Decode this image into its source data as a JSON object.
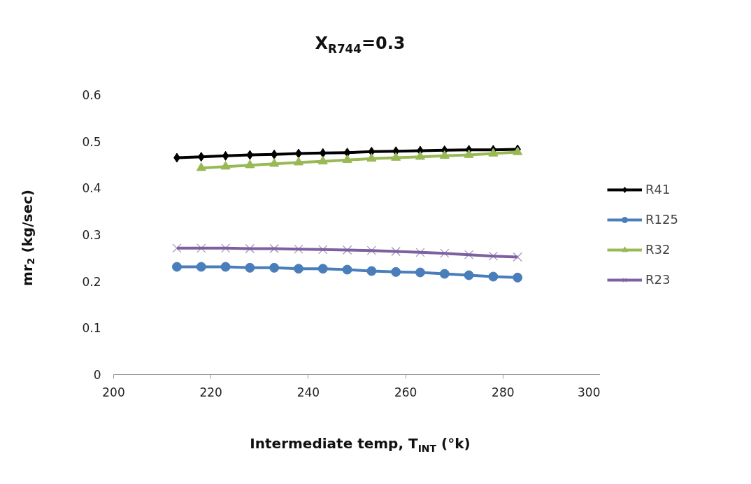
{
  "chart_data": {
    "type": "line",
    "title": "X$_{R744}$=0.3",
    "xlabel": "Intermediate temp, T$_{INT}$ (°k)",
    "ylabel": "mr$_{2}$ (kg/sec)",
    "x": [
      213,
      218,
      223,
      228,
      233,
      238,
      243,
      248,
      253,
      258,
      263,
      268,
      273,
      278,
      283
    ],
    "xlim": [
      200,
      300
    ],
    "xticks": [
      200,
      220,
      240,
      260,
      280,
      300
    ],
    "ylim": [
      0,
      0.6
    ],
    "yticks": [
      0,
      0.1,
      0.2,
      0.3,
      0.4,
      0.5,
      0.6
    ],
    "grid": false,
    "legend": "right",
    "line_style": "solid",
    "series": [
      {
        "name": "R41",
        "color": "#000000",
        "marker": "diamond",
        "values": [
          0.465,
          0.467,
          0.469,
          0.471,
          0.472,
          0.474,
          0.475,
          0.476,
          0.478,
          0.479,
          0.48,
          0.481,
          0.482,
          0.482,
          0.483
        ]
      },
      {
        "name": "R125",
        "color": "#4a7ebb",
        "marker": "circle",
        "values": [
          0.231,
          0.231,
          0.231,
          0.229,
          0.229,
          0.227,
          0.227,
          0.225,
          0.222,
          0.22,
          0.219,
          0.216,
          0.213,
          0.21,
          0.208
        ]
      },
      {
        "name": "R32",
        "color": "#98b954",
        "marker": "triangle",
        "x": [
          218,
          223,
          228,
          233,
          238,
          243,
          248,
          253,
          258,
          263,
          268,
          273,
          278,
          283
        ],
        "values": [
          0.443,
          0.446,
          0.449,
          0.452,
          0.455,
          0.457,
          0.46,
          0.463,
          0.465,
          0.467,
          0.469,
          0.471,
          0.474,
          0.477
        ]
      },
      {
        "name": "R23",
        "color": "#7d60a0",
        "marker": "x",
        "values": [
          0.271,
          0.271,
          0.271,
          0.27,
          0.27,
          0.269,
          0.268,
          0.267,
          0.266,
          0.264,
          0.262,
          0.26,
          0.257,
          0.254,
          0.252
        ]
      }
    ]
  }
}
